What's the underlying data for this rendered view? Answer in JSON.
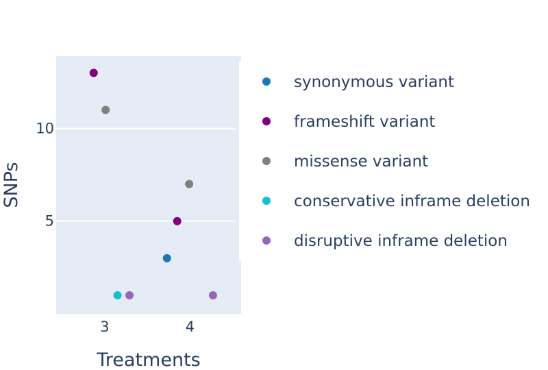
{
  "chart_data": {
    "type": "scatter",
    "xlabel": "Treatments",
    "ylabel": "SNPs",
    "xlim": [
      2.43,
      4.6
    ],
    "ylim": [
      0,
      13.9
    ],
    "x_ticks": [
      3,
      4
    ],
    "y_ticks": [
      5,
      10
    ],
    "grid": "horizontal",
    "legend_position": "right",
    "plot_background": "#e5ecf6",
    "text_color": "#2a3f5f",
    "series": [
      {
        "name": "synonymous variant",
        "color": "#1f77b4",
        "points": [
          {
            "x": 3.73,
            "y": 3
          }
        ]
      },
      {
        "name": "frameshift variant",
        "color": "#800080",
        "points": [
          {
            "x": 2.87,
            "y": 13
          },
          {
            "x": 3.85,
            "y": 5
          }
        ]
      },
      {
        "name": "missense variant",
        "color": "#808080",
        "points": [
          {
            "x": 3.01,
            "y": 11
          },
          {
            "x": 3.99,
            "y": 7
          }
        ]
      },
      {
        "name": "conservative inframe deletion",
        "color": "#17becf",
        "points": [
          {
            "x": 3.15,
            "y": 1
          }
        ]
      },
      {
        "name": "disruptive inframe deletion",
        "color": "#9467bd",
        "points": [
          {
            "x": 3.29,
            "y": 1
          },
          {
            "x": 4.27,
            "y": 1
          }
        ]
      }
    ]
  }
}
